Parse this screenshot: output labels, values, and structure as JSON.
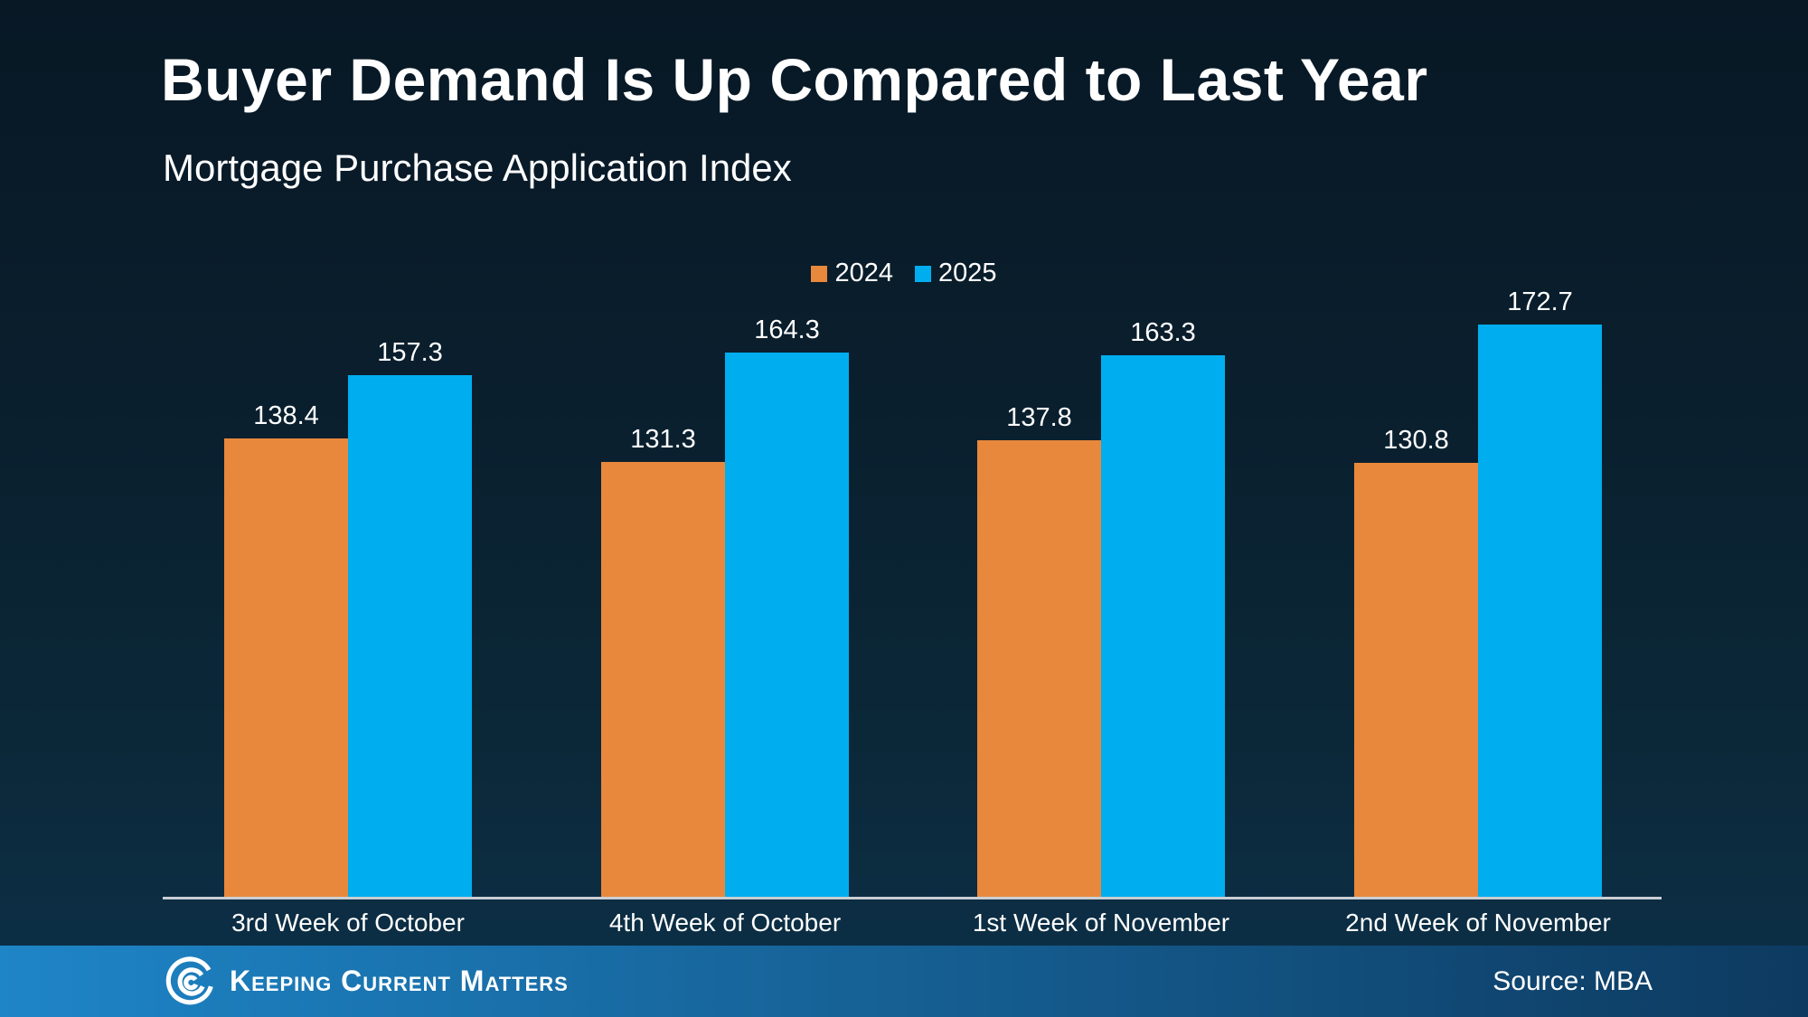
{
  "page": {
    "title": "Buyer Demand Is Up Compared to Last Year",
    "subtitle": "Mortgage Purchase Application Index"
  },
  "chart_data": {
    "type": "bar",
    "title": "Buyer Demand Is Up Compared to Last Year",
    "subtitle": "Mortgage Purchase Application Index",
    "categories": [
      "3rd Week of October",
      "4th Week of October",
      "1st Week of November",
      "2nd Week of November"
    ],
    "series": [
      {
        "name": "2024",
        "color": "#E8883C",
        "values": [
          138.4,
          131.3,
          137.8,
          130.8
        ]
      },
      {
        "name": "2025",
        "color": "#00AEEF",
        "values": [
          157.3,
          164.3,
          163.3,
          172.7
        ]
      }
    ],
    "value_label_decimals": 1,
    "ylim": [
      0,
      195
    ],
    "grid": false,
    "legend_position": "top-center",
    "axis_line_color": "#C9CED3"
  },
  "legend": {
    "items": [
      {
        "label": "2024",
        "color": "#E8883C"
      },
      {
        "label": "2025",
        "color": "#00AEEF"
      }
    ]
  },
  "footer": {
    "brand": "Keeping Current Matters",
    "source": "Source: MBA",
    "logo_icon": "kcm-swirl-icon",
    "gradient_left": "#1E85C7",
    "gradient_right": "#0D3A60"
  },
  "colors": {
    "background_top": "#081825",
    "background_bottom": "#0D3049",
    "text": "#FFFFFF"
  }
}
